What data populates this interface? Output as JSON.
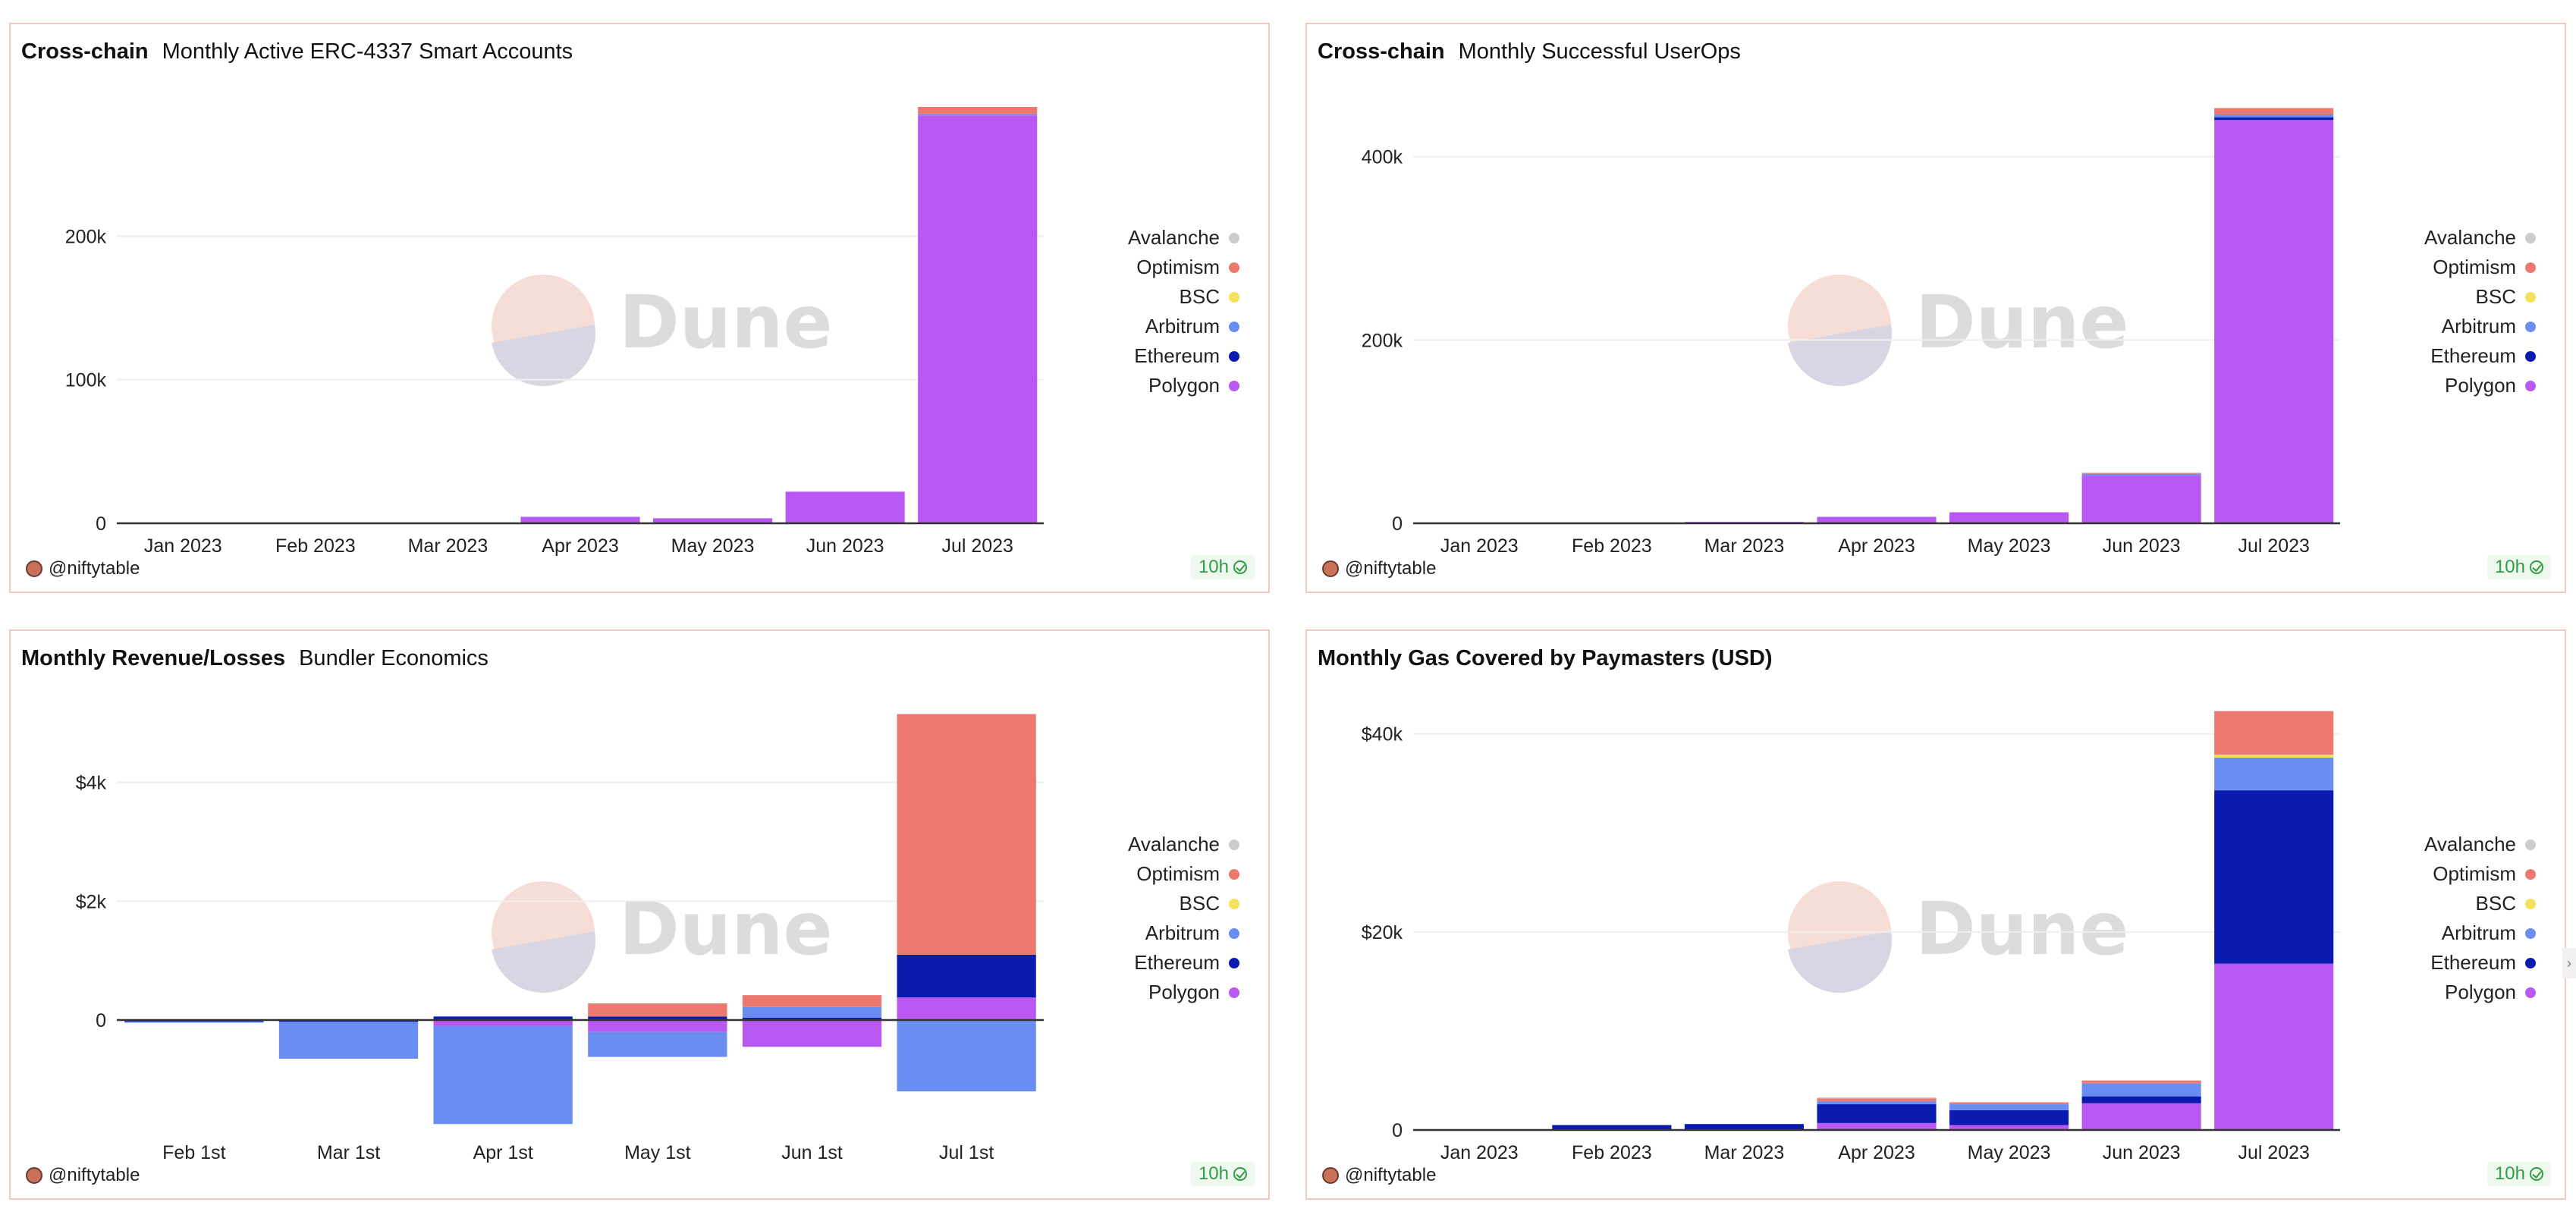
{
  "panels": [
    {
      "title": "Cross-chain",
      "subtitle": "Monthly Active ERC-4337 Smart Accounts",
      "author": "@niftytable",
      "badge": "10h"
    },
    {
      "title": "Cross-chain",
      "subtitle": "Monthly Successful UserOps",
      "author": "@niftytable",
      "badge": "10h"
    },
    {
      "title": "Monthly Revenue/Losses",
      "subtitle": "Bundler Economics",
      "author": "@niftytable",
      "badge": "10h"
    },
    {
      "title": "Monthly Gas Covered by Paymasters (USD)",
      "subtitle": "",
      "author": "@niftytable",
      "badge": "10h"
    }
  ],
  "watermark": {
    "text": "Dune"
  },
  "side_handle": "›",
  "legend": [
    {
      "name": "Avalanche",
      "color": "#cccccc"
    },
    {
      "name": "Optimism",
      "color": "#ec7870"
    },
    {
      "name": "BSC",
      "color": "#f5e15a"
    },
    {
      "name": "Arbitrum",
      "color": "#6a8df2"
    },
    {
      "name": "Ethereum",
      "color": "#0b1bb0"
    },
    {
      "name": "Polygon",
      "color": "#b857f2"
    }
  ],
  "chart_data": [
    {
      "type": "bar",
      "stacked": true,
      "categories": [
        "Jan 2023",
        "Feb 2023",
        "Mar 2023",
        "Apr 2023",
        "May 2023",
        "Jun 2023",
        "Jul 2023"
      ],
      "ylim": [
        0,
        300000
      ],
      "yticks": [
        0,
        100000,
        200000
      ],
      "ytick_labels": [
        "0",
        "100k",
        "200k"
      ],
      "series": [
        {
          "name": "Polygon",
          "values": [
            0,
            0,
            0,
            4500,
            3500,
            22000,
            284000
          ]
        },
        {
          "name": "Ethereum",
          "values": [
            0,
            0,
            0,
            0,
            0,
            0,
            0
          ]
        },
        {
          "name": "Arbitrum",
          "values": [
            0,
            0,
            0,
            0,
            0,
            0,
            1000
          ]
        },
        {
          "name": "BSC",
          "values": [
            0,
            0,
            0,
            0,
            0,
            0,
            0
          ]
        },
        {
          "name": "Optimism",
          "values": [
            0,
            0,
            0,
            0,
            0,
            0,
            5000
          ]
        },
        {
          "name": "Avalanche",
          "values": [
            0,
            0,
            0,
            0,
            0,
            0,
            0
          ]
        }
      ]
    },
    {
      "type": "bar",
      "stacked": true,
      "categories": [
        "Jan 2023",
        "Feb 2023",
        "Mar 2023",
        "Apr 2023",
        "May 2023",
        "Jun 2023",
        "Jul 2023"
      ],
      "ylim": [
        0,
        470000
      ],
      "yticks": [
        0,
        200000,
        400000
      ],
      "ytick_labels": [
        "0",
        "200k",
        "400k"
      ],
      "series": [
        {
          "name": "Polygon",
          "values": [
            0,
            0,
            1500,
            7000,
            12000,
            52000,
            440000
          ]
        },
        {
          "name": "Ethereum",
          "values": [
            0,
            0,
            0,
            0,
            0,
            0,
            3000
          ]
        },
        {
          "name": "Arbitrum",
          "values": [
            0,
            0,
            0,
            0,
            0,
            2000,
            3000
          ]
        },
        {
          "name": "BSC",
          "values": [
            0,
            0,
            0,
            0,
            0,
            0,
            0
          ]
        },
        {
          "name": "Optimism",
          "values": [
            0,
            0,
            0,
            0,
            0,
            1000,
            7000
          ]
        },
        {
          "name": "Avalanche",
          "values": [
            0,
            0,
            0,
            0,
            0,
            0,
            0
          ]
        }
      ]
    },
    {
      "type": "bar",
      "stacked": true,
      "categories": [
        "Feb 1st",
        "Mar 1st",
        "Apr 1st",
        "May 1st",
        "Jun 1st",
        "Jul 1st"
      ],
      "ylim": [
        -1850,
        5400
      ],
      "yticks": [
        0,
        2000,
        4000
      ],
      "ytick_labels": [
        "0",
        "$2k",
        "$4k"
      ],
      "series": [
        {
          "name": "Polygon",
          "values": [
            0,
            0,
            -100,
            -200,
            -450,
            380
          ]
        },
        {
          "name": "Ethereum",
          "values": [
            -25,
            -30,
            60,
            60,
            40,
            720
          ]
        },
        {
          "name": "Arbitrum",
          "values": [
            -20,
            -620,
            -1650,
            -420,
            180,
            -1200
          ]
        },
        {
          "name": "BSC",
          "values": [
            0,
            0,
            0,
            0,
            0,
            0
          ]
        },
        {
          "name": "Optimism",
          "values": [
            0,
            0,
            0,
            220,
            200,
            4050
          ]
        },
        {
          "name": "Avalanche",
          "values": [
            0,
            0,
            0,
            0,
            0,
            0
          ]
        }
      ]
    },
    {
      "type": "bar",
      "stacked": true,
      "categories": [
        "Jan 2023",
        "Feb 2023",
        "Mar 2023",
        "Apr 2023",
        "May 2023",
        "Jun 2023",
        "Jul 2023"
      ],
      "ylim": [
        0,
        43500
      ],
      "yticks": [
        0,
        20000,
        40000
      ],
      "ytick_labels": [
        "0",
        "$20k",
        "$40k"
      ],
      "series": [
        {
          "name": "Polygon",
          "values": [
            0,
            0,
            0,
            700,
            500,
            2700,
            16800
          ]
        },
        {
          "name": "Ethereum",
          "values": [
            0,
            500,
            600,
            1900,
            1500,
            700,
            17500
          ]
        },
        {
          "name": "Arbitrum",
          "values": [
            0,
            0,
            0,
            300,
            600,
            1300,
            3300
          ]
        },
        {
          "name": "BSC",
          "values": [
            0,
            0,
            0,
            0,
            0,
            0,
            300
          ]
        },
        {
          "name": "Optimism",
          "values": [
            0,
            0,
            0,
            300,
            200,
            300,
            4400
          ]
        },
        {
          "name": "Avalanche",
          "values": [
            0,
            0,
            0,
            100,
            0,
            0,
            0
          ]
        }
      ]
    }
  ]
}
